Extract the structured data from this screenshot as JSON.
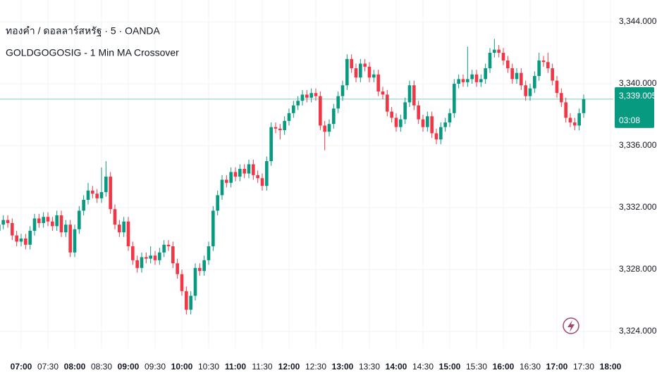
{
  "chart_data": {
    "type": "candlestick",
    "title": "ทองคำ / ดอลลาร์สหรัฐ · 5 · OANDA",
    "subtitle": "GOLDGOGOSIG - 1 Min MA Crossover",
    "up_color": "#089981",
    "down_color": "#f23645",
    "grid": true,
    "ylim": [
      3322.91,
      3345.41
    ],
    "yticks": [
      {
        "value": 3324,
        "label": "3,324.000"
      },
      {
        "value": 3328,
        "label": "3,328.000"
      },
      {
        "value": 3332,
        "label": "3,332.000"
      },
      {
        "value": 3336,
        "label": "3,336.000"
      },
      {
        "value": 3340,
        "label": "3,340.000"
      },
      {
        "value": 3344,
        "label": "3,344.000"
      }
    ],
    "xticks": [
      "07:00",
      "07:30",
      "08:00",
      "08:30",
      "09:00",
      "09:30",
      "10:00",
      "10:30",
      "11:00",
      "11:30",
      "12:00",
      "12:30",
      "13:00",
      "13:30",
      "14:00",
      "14:30",
      "15:00",
      "15:30",
      "16:00",
      "16:30",
      "17:00",
      "17:30",
      "18:00"
    ],
    "last_price_label": "3,339.005",
    "countdown": "03:08",
    "x": [
      "06:35",
      "06:40",
      "06:45",
      "06:50",
      "06:55",
      "07:00",
      "07:05",
      "07:10",
      "07:15",
      "07:20",
      "07:25",
      "07:30",
      "07:35",
      "07:40",
      "07:45",
      "07:50",
      "07:55",
      "08:00",
      "08:05",
      "08:10",
      "08:15",
      "08:20",
      "08:25",
      "08:30",
      "08:35",
      "08:40",
      "08:45",
      "08:50",
      "08:55",
      "09:00",
      "09:05",
      "09:10",
      "09:15",
      "09:20",
      "09:25",
      "09:30",
      "09:35",
      "09:40",
      "09:45",
      "09:50",
      "09:55",
      "10:00",
      "10:05",
      "10:10",
      "10:15",
      "10:20",
      "10:25",
      "10:30",
      "10:35",
      "10:40",
      "10:45",
      "10:50",
      "10:55",
      "11:00",
      "11:05",
      "11:10",
      "11:15",
      "11:20",
      "11:25",
      "11:30",
      "11:35",
      "11:40",
      "11:45",
      "11:50",
      "11:55",
      "12:00",
      "12:05",
      "12:10",
      "12:15",
      "12:20",
      "12:25",
      "12:30",
      "12:35",
      "12:40",
      "12:45",
      "12:50",
      "12:55",
      "13:00",
      "13:05",
      "13:10",
      "13:15",
      "13:20",
      "13:25",
      "13:30",
      "13:35",
      "13:40",
      "13:45",
      "13:50",
      "13:55",
      "14:00",
      "14:05",
      "14:10",
      "14:15",
      "14:20",
      "14:25",
      "14:30",
      "14:35",
      "14:40",
      "14:45",
      "14:50",
      "14:55",
      "15:00",
      "15:05",
      "15:10",
      "15:15",
      "15:20",
      "15:25",
      "15:30",
      "15:35",
      "15:40",
      "15:45",
      "15:50",
      "15:55",
      "16:00",
      "16:05",
      "16:10",
      "16:15",
      "16:20",
      "16:25",
      "16:30",
      "16:35",
      "16:40",
      "16:45",
      "16:50",
      "16:55",
      "17:00",
      "17:05",
      "17:10",
      "17:15",
      "17:20",
      "17:25",
      "17:30"
    ],
    "open": [
      3330.5,
      3330.9,
      3331.2,
      3331.0,
      3330.2,
      3329.8,
      3330.0,
      3329.6,
      3330.5,
      3331.3,
      3331.0,
      3331.4,
      3331.1,
      3330.8,
      3331.5,
      3330.4,
      3330.9,
      3329.1,
      3330.6,
      3331.8,
      3332.5,
      3333.1,
      3332.9,
      3332.6,
      3333.0,
      3334.0,
      3331.9,
      3330.9,
      3330.4,
      3331.1,
      3329.5,
      3328.6,
      3328.1,
      3328.8,
      3328.7,
      3328.9,
      3328.6,
      3329.1,
      3329.6,
      3329.5,
      3328.4,
      3327.7,
      3326.6,
      3325.4,
      3326.3,
      3328.1,
      3327.9,
      3328.6,
      3329.5,
      3331.8,
      3332.8,
      3333.8,
      3333.6,
      3334.3,
      3334.0,
      3334.5,
      3334.2,
      3334.8,
      3334.1,
      3333.9,
      3333.4,
      3335.0,
      3337.2,
      3337.1,
      3337.0,
      3337.6,
      3338.1,
      3338.6,
      3338.9,
      3339.3,
      3339.1,
      3339.4,
      3339.2,
      3337.3,
      3336.9,
      3337.4,
      3338.4,
      3339.2,
      3339.9,
      3341.6,
      3341.0,
      3340.4,
      3341.3,
      3341.1,
      3340.4,
      3340.6,
      3339.5,
      3339.3,
      3338.2,
      3337.8,
      3337.2,
      3337.7,
      3338.8,
      3339.9,
      3338.6,
      3337.7,
      3337.2,
      3337.9,
      3336.8,
      3336.4,
      3337.2,
      3337.5,
      3338.1,
      3340.0,
      3340.3,
      3340.1,
      3340.3,
      3340.6,
      3340.1,
      3340.3,
      3341.0,
      3342.0,
      3342.2,
      3342.0,
      3341.5,
      3341.0,
      3340.3,
      3340.7,
      3339.9,
      3339.2,
      3339.7,
      3340.5,
      3341.5,
      3341.4,
      3341.0,
      3340.2,
      3339.4,
      3338.8,
      3337.8,
      3337.5,
      3337.3,
      3338.1
    ],
    "high": [
      3331.2,
      3331.5,
      3331.5,
      3331.3,
      3330.5,
      3330.3,
      3330.3,
      3330.8,
      3331.6,
      3331.6,
      3331.7,
      3331.7,
      3331.4,
      3331.8,
      3331.8,
      3331.2,
      3331.2,
      3330.9,
      3332.1,
      3332.8,
      3333.6,
      3333.4,
      3333.2,
      3334.6,
      3335.0,
      3334.3,
      3332.2,
      3331.2,
      3331.4,
      3331.4,
      3329.8,
      3328.9,
      3329.1,
      3329.1,
      3329.5,
      3329.2,
      3329.4,
      3329.9,
      3329.9,
      3329.8,
      3328.7,
      3328.0,
      3326.9,
      3326.6,
      3328.4,
      3328.4,
      3328.9,
      3329.8,
      3332.1,
      3333.1,
      3334.1,
      3334.1,
      3334.6,
      3334.6,
      3334.8,
      3334.8,
      3335.1,
      3335.1,
      3334.4,
      3334.2,
      3335.3,
      3337.5,
      3337.5,
      3337.4,
      3337.9,
      3338.4,
      3338.9,
      3339.2,
      3339.6,
      3339.6,
      3339.7,
      3339.7,
      3339.5,
      3337.6,
      3337.7,
      3338.7,
      3339.5,
      3340.2,
      3341.9,
      3341.9,
      3341.3,
      3341.6,
      3341.6,
      3341.4,
      3340.9,
      3340.9,
      3339.8,
      3339.6,
      3338.5,
      3338.1,
      3338.0,
      3339.1,
      3340.2,
      3340.2,
      3338.9,
      3338.0,
      3338.2,
      3338.2,
      3337.1,
      3337.5,
      3337.8,
      3338.4,
      3340.3,
      3340.6,
      3340.6,
      3342.4,
      3340.9,
      3340.9,
      3340.6,
      3341.3,
      3342.3,
      3342.9,
      3342.5,
      3342.3,
      3341.8,
      3341.3,
      3341.0,
      3341.0,
      3340.2,
      3340.0,
      3340.8,
      3342.0,
      3341.8,
      3342.0,
      3341.3,
      3340.5,
      3339.7,
      3339.1,
      3338.1,
      3337.8,
      3338.4,
      3339.3
    ],
    "low": [
      3330.2,
      3330.6,
      3330.7,
      3329.9,
      3329.5,
      3329.5,
      3329.3,
      3329.3,
      3330.2,
      3330.7,
      3330.7,
      3330.8,
      3330.5,
      3330.5,
      3330.1,
      3330.1,
      3328.8,
      3328.8,
      3330.3,
      3331.5,
      3332.2,
      3332.6,
      3332.3,
      3332.3,
      3332.7,
      3331.6,
      3330.6,
      3330.1,
      3330.1,
      3329.2,
      3328.3,
      3327.8,
      3327.8,
      3328.4,
      3328.4,
      3328.3,
      3328.3,
      3328.8,
      3329.2,
      3328.1,
      3327.4,
      3326.3,
      3325.1,
      3325.1,
      3326.0,
      3327.6,
      3327.6,
      3328.3,
      3329.2,
      3331.5,
      3332.5,
      3333.3,
      3333.3,
      3333.7,
      3333.7,
      3333.9,
      3333.9,
      3333.8,
      3333.6,
      3333.1,
      3333.1,
      3334.7,
      3336.8,
      3336.4,
      3336.7,
      3337.3,
      3337.8,
      3338.3,
      3338.6,
      3338.8,
      3338.8,
      3338.9,
      3337.0,
      3335.7,
      3336.6,
      3337.1,
      3338.1,
      3338.9,
      3339.6,
      3340.7,
      3340.1,
      3340.1,
      3340.8,
      3340.1,
      3340.1,
      3339.2,
      3339.0,
      3337.9,
      3337.5,
      3336.9,
      3336.9,
      3337.4,
      3338.5,
      3338.3,
      3337.4,
      3336.9,
      3336.9,
      3336.5,
      3336.1,
      3336.1,
      3336.9,
      3337.2,
      3337.8,
      3339.7,
      3339.8,
      3339.8,
      3340.0,
      3339.8,
      3339.8,
      3340.0,
      3340.7,
      3341.7,
      3341.7,
      3341.2,
      3340.7,
      3340.0,
      3340.0,
      3339.6,
      3338.9,
      3338.9,
      3339.4,
      3340.2,
      3341.1,
      3340.7,
      3339.9,
      3339.1,
      3338.5,
      3337.5,
      3337.2,
      3337.0,
      3337.0,
      3337.8
    ],
    "close": [
      3330.9,
      3331.2,
      3331.0,
      3330.2,
      3329.8,
      3330.0,
      3329.6,
      3330.5,
      3331.3,
      3331.0,
      3331.4,
      3331.1,
      3330.8,
      3331.5,
      3330.4,
      3330.9,
      3329.1,
      3330.6,
      3331.8,
      3332.5,
      3333.1,
      3332.9,
      3332.6,
      3333.0,
      3334.0,
      3331.9,
      3330.9,
      3330.4,
      3331.1,
      3329.5,
      3328.6,
      3328.1,
      3328.8,
      3328.7,
      3328.9,
      3328.6,
      3329.1,
      3329.6,
      3329.5,
      3328.4,
      3327.7,
      3326.6,
      3325.4,
      3326.3,
      3328.1,
      3327.9,
      3328.6,
      3329.5,
      3331.8,
      3332.8,
      3333.8,
      3333.6,
      3334.3,
      3334.0,
      3334.5,
      3334.2,
      3334.8,
      3334.1,
      3333.9,
      3333.4,
      3335.0,
      3337.2,
      3337.1,
      3337.0,
      3337.6,
      3338.1,
      3338.6,
      3338.9,
      3339.3,
      3339.1,
      3339.4,
      3339.2,
      3337.3,
      3336.9,
      3337.4,
      3338.4,
      3339.2,
      3339.9,
      3341.6,
      3341.0,
      3340.4,
      3341.3,
      3341.1,
      3340.4,
      3340.6,
      3339.5,
      3339.3,
      3338.2,
      3337.8,
      3337.2,
      3337.7,
      3338.8,
      3339.9,
      3338.6,
      3337.7,
      3337.2,
      3337.9,
      3336.8,
      3336.4,
      3337.2,
      3337.5,
      3338.1,
      3340.0,
      3340.3,
      3340.1,
      3340.3,
      3340.6,
      3340.1,
      3340.3,
      3341.0,
      3342.0,
      3342.2,
      3342.0,
      3341.5,
      3341.0,
      3340.3,
      3340.7,
      3339.9,
      3339.2,
      3339.7,
      3340.5,
      3341.5,
      3341.4,
      3341.0,
      3340.2,
      3339.4,
      3338.8,
      3337.8,
      3337.5,
      3337.3,
      3338.1,
      3339.005
    ]
  }
}
